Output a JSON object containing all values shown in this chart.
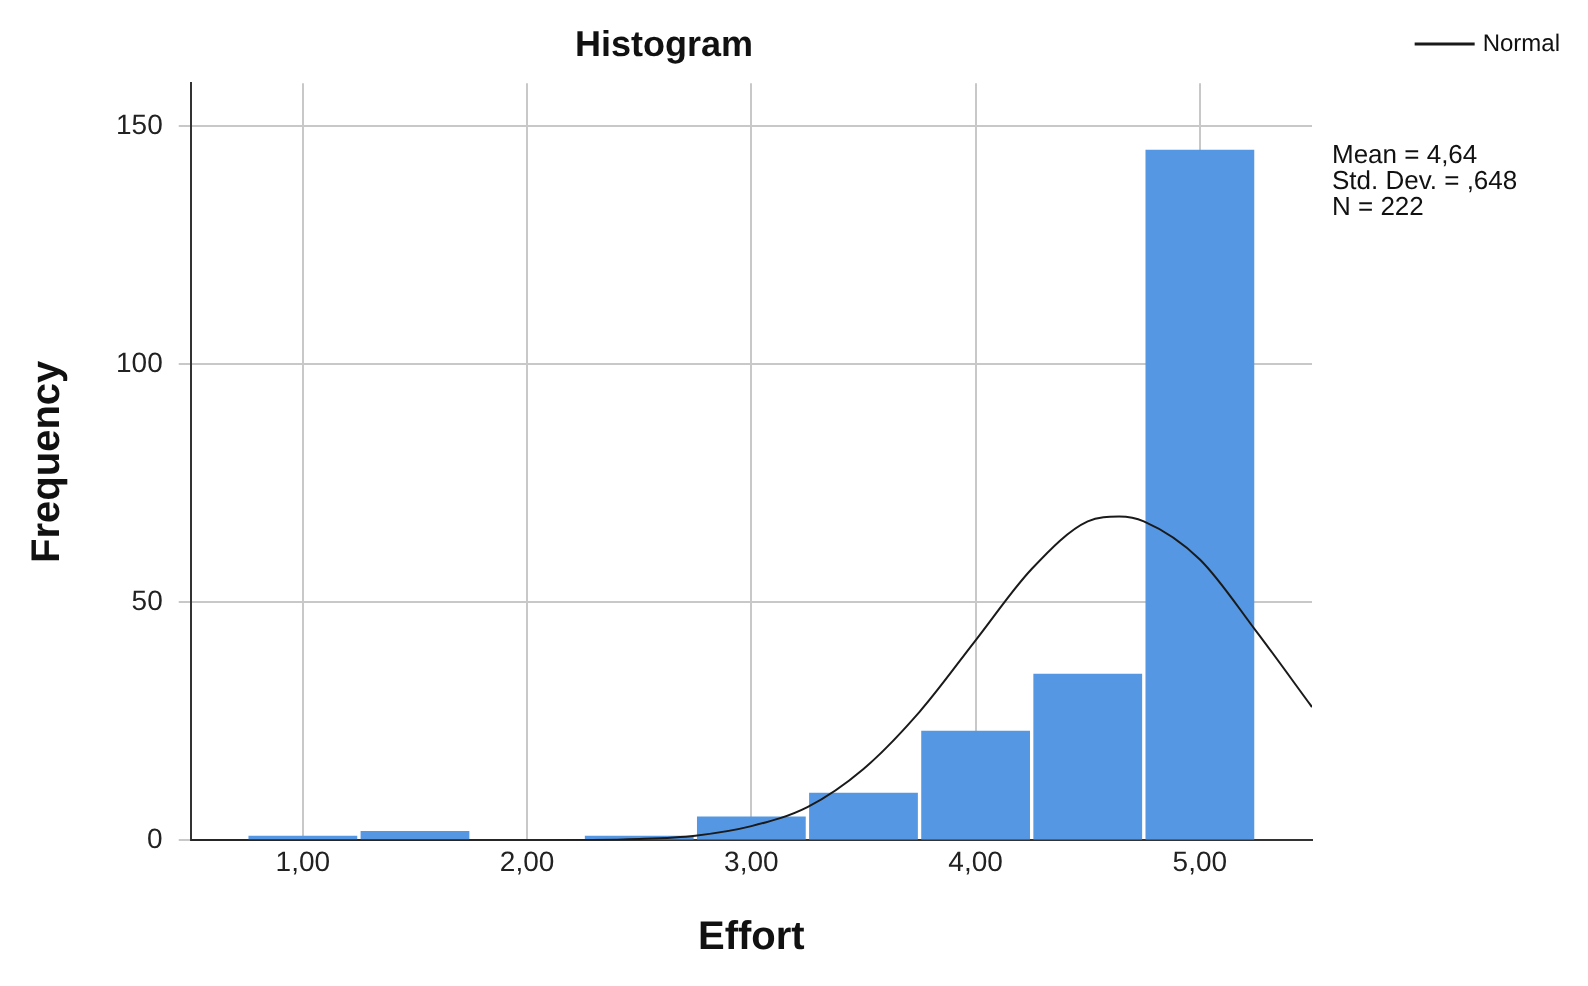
{
  "chart_data": {
    "type": "histogram",
    "title": "Histogram",
    "xlabel": "Effort",
    "ylabel": "Frequency",
    "bins": [
      0.75,
      1.25,
      1.75,
      2.25,
      2.75,
      3.25,
      3.75,
      4.25,
      4.75,
      5.25
    ],
    "values": [
      1,
      2,
      0,
      1,
      5,
      10,
      23,
      35,
      145
    ],
    "color": "#5597e2",
    "series": [
      {
        "name": "Normal",
        "type": "line",
        "color": "#1a1a1a",
        "x": [
          0.5,
          1.5,
          2.0,
          2.5,
          2.75,
          3.0,
          3.25,
          3.5,
          3.75,
          4.0,
          4.25,
          4.5,
          4.64,
          4.75,
          5.0,
          5.25,
          5.5
        ],
        "values": [
          0,
          0,
          0,
          0.3,
          1,
          3,
          7,
          15,
          27,
          42,
          57,
          67,
          68,
          67,
          59,
          44,
          28
        ]
      }
    ],
    "xlim": [
      0.5,
      5.5
    ],
    "xticks": [
      {
        "value": 1,
        "label": "1,00"
      },
      {
        "value": 2,
        "label": "2,00"
      },
      {
        "value": 3,
        "label": "3,00"
      },
      {
        "value": 4,
        "label": "4,00"
      },
      {
        "value": 5,
        "label": "5,00"
      }
    ],
    "ylim": [
      0,
      159
    ],
    "yticks": [
      0,
      50,
      100,
      150
    ],
    "annotations": [
      "Mean = 4,64",
      "Std. Dev. = ,648",
      "N = 222"
    ],
    "grid": true,
    "legend": "top right",
    "marker": "none",
    "line_style": "solid"
  }
}
